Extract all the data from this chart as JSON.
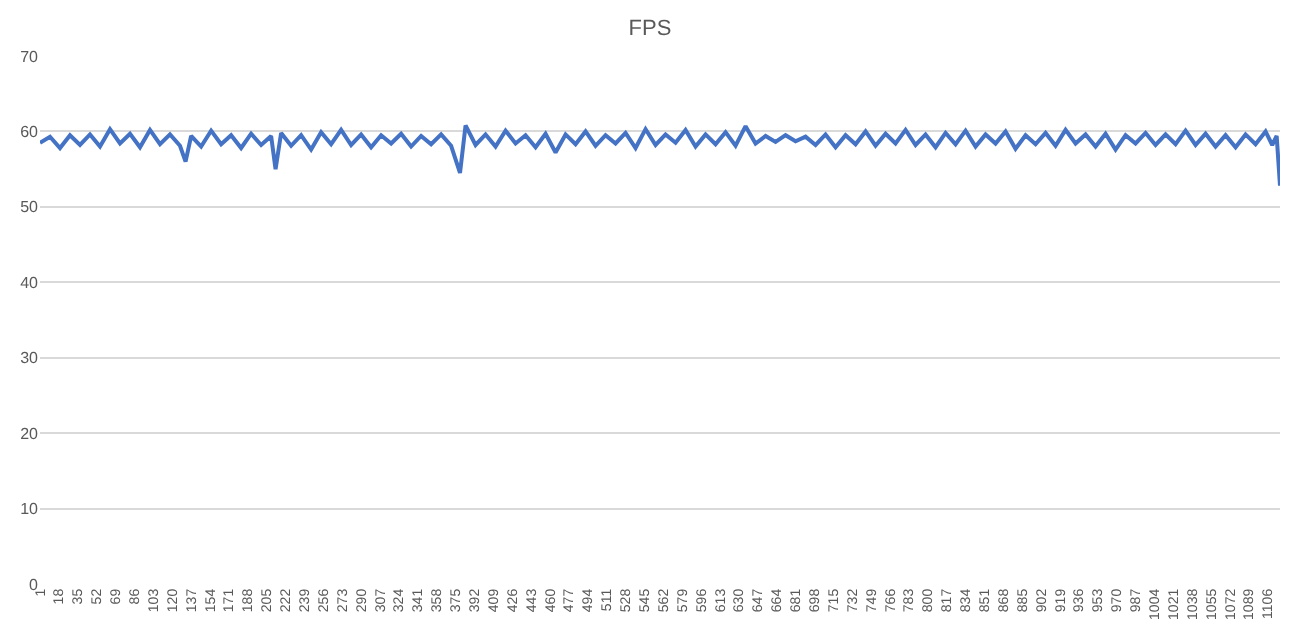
{
  "chart_data": {
    "type": "line",
    "title": "FPS",
    "grid": "y",
    "marker": "none",
    "line_style": "solid",
    "ylim": [
      0,
      70
    ],
    "yticks": [
      0,
      10,
      20,
      30,
      40,
      50,
      60,
      70
    ],
    "xlim": [
      1,
      1117
    ],
    "xticks": [
      1,
      18,
      35,
      52,
      69,
      86,
      103,
      120,
      137,
      154,
      171,
      188,
      205,
      222,
      239,
      256,
      273,
      290,
      307,
      324,
      341,
      358,
      375,
      392,
      409,
      426,
      443,
      460,
      477,
      494,
      511,
      528,
      545,
      562,
      579,
      596,
      613,
      630,
      647,
      664,
      681,
      698,
      715,
      732,
      749,
      766,
      783,
      800,
      817,
      834,
      851,
      868,
      885,
      902,
      919,
      936,
      953,
      970,
      987,
      1004,
      1021,
      1038,
      1055,
      1072,
      1089,
      1106
    ],
    "series": [
      {
        "color": "#4472c4",
        "x": [
          1,
          10,
          19,
          28,
          37,
          46,
          55,
          64,
          73,
          82,
          91,
          100,
          109,
          118,
          127,
          132,
          137,
          146,
          155,
          164,
          173,
          182,
          191,
          200,
          209,
          213,
          218,
          227,
          236,
          245,
          254,
          263,
          272,
          281,
          290,
          299,
          308,
          317,
          326,
          335,
          344,
          353,
          362,
          371,
          379,
          384,
          393,
          402,
          411,
          420,
          429,
          438,
          447,
          456,
          465,
          474,
          483,
          492,
          501,
          510,
          519,
          528,
          537,
          546,
          555,
          564,
          573,
          582,
          591,
          600,
          609,
          618,
          627,
          636,
          645,
          654,
          663,
          672,
          681,
          690,
          699,
          708,
          717,
          726,
          735,
          744,
          753,
          762,
          771,
          780,
          789,
          798,
          807,
          816,
          825,
          834,
          843,
          852,
          861,
          870,
          879,
          888,
          897,
          906,
          915,
          924,
          933,
          942,
          951,
          960,
          969,
          978,
          987,
          996,
          1005,
          1014,
          1023,
          1032,
          1041,
          1050,
          1059,
          1068,
          1077,
          1086,
          1095,
          1104,
          1110,
          1114,
          1117
        ],
        "values": [
          58.5,
          59.3,
          57.8,
          59.5,
          58.2,
          59.6,
          58.0,
          60.3,
          58.4,
          59.7,
          57.9,
          60.2,
          58.3,
          59.6,
          58.1,
          56.0,
          59.4,
          58.0,
          60.1,
          58.3,
          59.5,
          57.8,
          59.7,
          58.2,
          59.4,
          55.0,
          59.8,
          58.1,
          59.5,
          57.6,
          59.9,
          58.3,
          60.2,
          58.2,
          59.6,
          57.9,
          59.5,
          58.4,
          59.7,
          58.0,
          59.4,
          58.3,
          59.6,
          58.1,
          54.5,
          60.8,
          58.2,
          59.6,
          58.0,
          60.1,
          58.4,
          59.5,
          57.9,
          59.7,
          57.2,
          59.6,
          58.3,
          60.0,
          58.1,
          59.5,
          58.4,
          59.8,
          57.8,
          60.3,
          58.2,
          59.6,
          58.5,
          60.2,
          58.0,
          59.6,
          58.3,
          59.9,
          58.1,
          60.7,
          58.4,
          59.4,
          58.6,
          59.5,
          58.7,
          59.3,
          58.2,
          59.6,
          57.9,
          59.5,
          58.3,
          60.0,
          58.1,
          59.7,
          58.4,
          60.2,
          58.2,
          59.6,
          57.9,
          59.8,
          58.3,
          60.1,
          58.0,
          59.6,
          58.4,
          60.0,
          57.7,
          59.5,
          58.3,
          59.8,
          58.1,
          60.2,
          58.4,
          59.6,
          58.0,
          59.7,
          57.6,
          59.5,
          58.4,
          59.8,
          58.2,
          59.6,
          58.3,
          60.1,
          58.2,
          59.7,
          58.0,
          59.5,
          57.9,
          59.6,
          58.3,
          60.0,
          58.2,
          59.4,
          52.8
        ]
      }
    ]
  }
}
